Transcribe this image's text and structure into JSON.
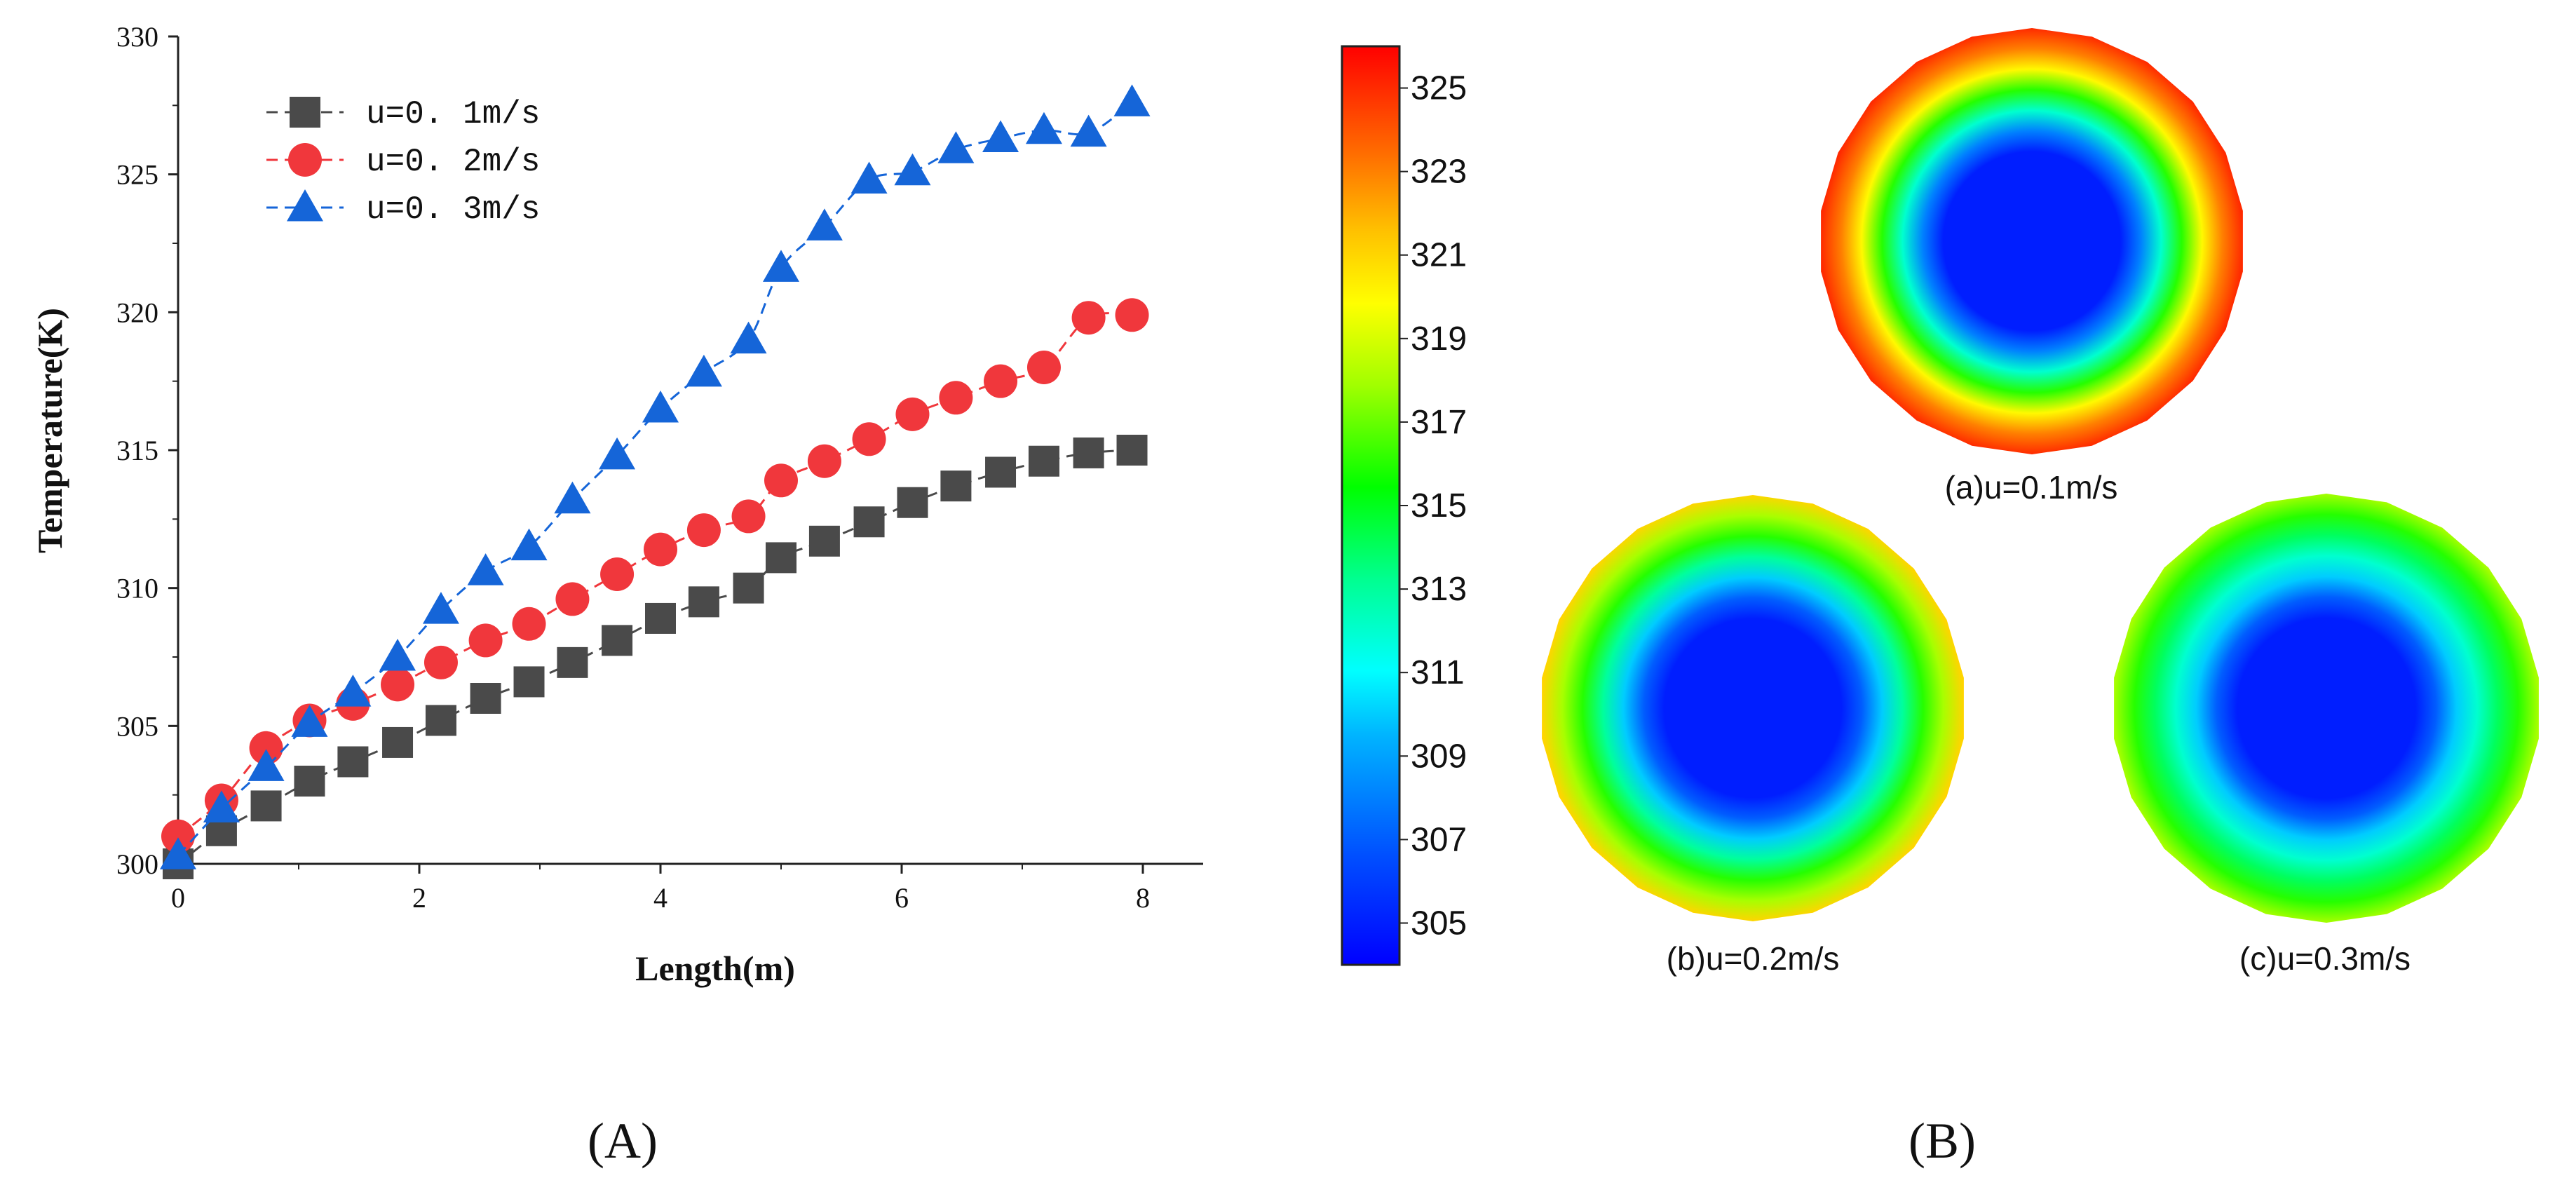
{
  "chart_data": [
    {
      "type": "line",
      "panel": "A",
      "xlabel": "Length(m)",
      "ylabel": "Temperature(K)",
      "xlim": [
        0,
        8.5
      ],
      "ylim": [
        300,
        330
      ],
      "xticks": [
        0,
        2,
        4,
        6,
        8
      ],
      "yticks": [
        300,
        305,
        310,
        315,
        320,
        325,
        330
      ],
      "legend_position": "top-left",
      "series": [
        {
          "name": "u=0. 1m/s",
          "marker": "square",
          "color": "#4a4a4a",
          "x": [
            0,
            0.36,
            0.73,
            1.09,
            1.45,
            1.82,
            2.18,
            2.55,
            2.91,
            3.27,
            3.64,
            4.0,
            4.36,
            4.73,
            5.0,
            5.36,
            5.73,
            6.09,
            6.45,
            6.82,
            7.18,
            7.55,
            7.91
          ],
          "y": [
            300.0,
            301.2,
            302.1,
            303.0,
            303.7,
            304.4,
            305.2,
            306.0,
            306.6,
            307.3,
            308.1,
            308.9,
            309.5,
            310.0,
            311.1,
            311.7,
            312.4,
            313.1,
            313.7,
            314.2,
            314.6,
            314.9,
            315.0
          ]
        },
        {
          "name": "u=0. 2m/s",
          "marker": "circle",
          "color": "#f0373c",
          "x": [
            0,
            0.36,
            0.73,
            1.09,
            1.45,
            1.82,
            2.18,
            2.55,
            2.91,
            3.27,
            3.64,
            4.0,
            4.36,
            4.73,
            5.0,
            5.36,
            5.73,
            6.09,
            6.45,
            6.82,
            7.18,
            7.55,
            7.91
          ],
          "y": [
            301.0,
            302.3,
            304.2,
            305.2,
            305.8,
            306.5,
            307.3,
            308.1,
            308.7,
            309.6,
            310.5,
            311.4,
            312.1,
            312.6,
            313.9,
            314.6,
            315.4,
            316.3,
            316.9,
            317.5,
            318.0,
            319.8,
            319.9
          ]
        },
        {
          "name": "u=0. 3m/s",
          "marker": "triangle",
          "color": "#1565d8",
          "x": [
            0,
            0.36,
            0.73,
            1.09,
            1.45,
            1.82,
            2.18,
            2.55,
            2.91,
            3.27,
            3.64,
            4.0,
            4.36,
            4.73,
            5.0,
            5.36,
            5.73,
            6.09,
            6.45,
            6.82,
            7.18,
            7.55,
            7.91
          ],
          "y": [
            300.3,
            302.0,
            303.5,
            305.1,
            306.2,
            307.5,
            309.2,
            310.6,
            311.5,
            313.2,
            314.8,
            316.5,
            317.8,
            319.0,
            321.6,
            323.1,
            324.8,
            325.1,
            325.9,
            326.3,
            326.6,
            326.5,
            327.6
          ]
        }
      ]
    },
    {
      "type": "heatmap",
      "panel": "B",
      "colorbar": {
        "min": 304,
        "max": 326,
        "ticks": [
          305,
          307,
          309,
          311,
          313,
          315,
          317,
          319,
          321,
          323,
          325
        ]
      },
      "discs": [
        {
          "caption": "(a)u=0.1m/s",
          "center_temp": 305,
          "ring_temps": [
            305,
            308,
            312,
            316,
            320,
            323,
            325
          ]
        },
        {
          "caption": "(b)u=0.2m/s",
          "center_temp": 305,
          "ring_temps": [
            305,
            307,
            310,
            313,
            316,
            318,
            321
          ]
        },
        {
          "caption": "(c)u=0.3m/s",
          "center_temp": 305,
          "ring_temps": [
            305,
            307,
            310,
            312,
            314,
            316,
            318
          ]
        }
      ]
    }
  ],
  "panel_labels": [
    "(A)",
    "(B)"
  ]
}
